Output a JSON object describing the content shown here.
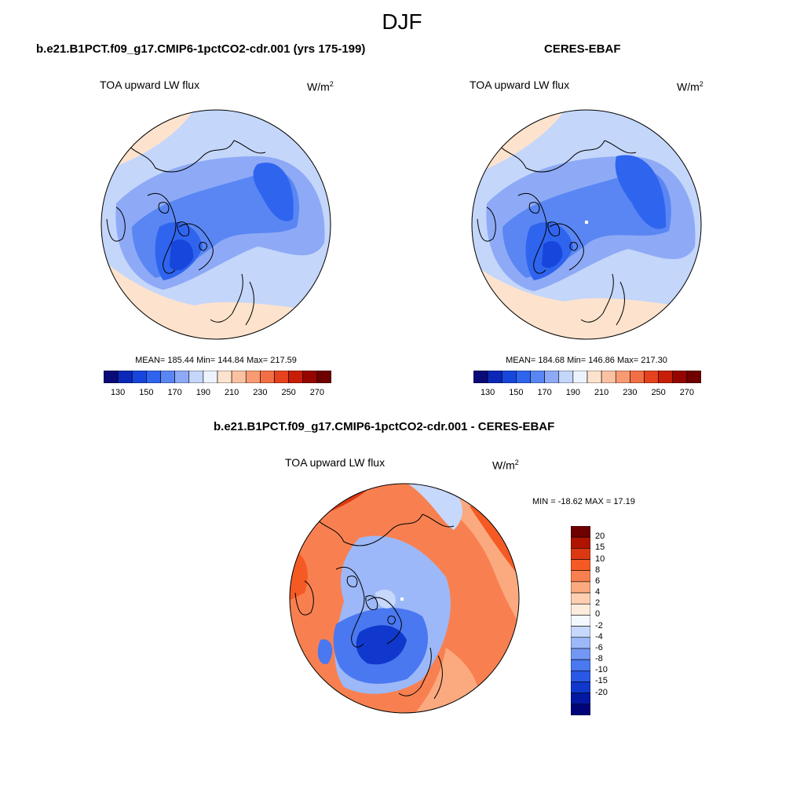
{
  "title": "DJF",
  "panels": [
    {
      "id": "model",
      "title": "b.e21.B1PCT.f09_g17.CMIP6-1pctCO2-cdr.001 (yrs 175-199)",
      "variable": "TOA upward LW flux",
      "units_base": "W/m",
      "units_exp": "2",
      "stats": "MEAN= 185.44  Min= 144.84  Max= 217.59",
      "mean": 185.44,
      "min": 144.84,
      "max": 217.59
    },
    {
      "id": "obs",
      "title": "CERES-EBAF",
      "variable": "TOA upward LW flux",
      "units_base": "W/m",
      "units_exp": "2",
      "stats": "MEAN= 184.68  Min= 146.86  Max= 217.30",
      "mean": 184.68,
      "min": 146.86,
      "max": 217.3
    },
    {
      "id": "diff",
      "title": "b.e21.B1PCT.f09_g17.CMIP6-1pctCO2-cdr.001 - CERES-EBAF",
      "variable": "TOA upward LW flux",
      "units_base": "W/m",
      "units_exp": "2",
      "stats": "MIN = -18.62 MAX =  17.19",
      "min": -18.62,
      "max": 17.19
    }
  ],
  "colorbar_abs": {
    "colors": [
      "#0a0a78",
      "#0c28b8",
      "#1746dc",
      "#2f64ee",
      "#5a86f4",
      "#8eaaf6",
      "#c4d6fa",
      "#edf3fe",
      "#fde3cd",
      "#fbc2a2",
      "#f89a72",
      "#f26e45",
      "#e6421e",
      "#c81e08",
      "#960600",
      "#6e0000"
    ],
    "labels": [
      "130",
      "150",
      "170",
      "190",
      "210",
      "230",
      "250",
      "270"
    ]
  },
  "colorbar_diff": {
    "colors": [
      "#6e0000",
      "#b01400",
      "#dc3812",
      "#f55a24",
      "#f88050",
      "#fbaa80",
      "#fdcfb0",
      "#fdecdc",
      "#f4f8ff",
      "#c6d8fb",
      "#9cb8f8",
      "#7298f4",
      "#4a78f0",
      "#2a58e6",
      "#1038cc",
      "#0418a4",
      "#000478"
    ],
    "labels": [
      "20",
      "15",
      "10",
      "8",
      "6",
      "4",
      "2",
      "0",
      "-2",
      "-4",
      "-6",
      "-8",
      "-10",
      "-15",
      "-20"
    ]
  }
}
